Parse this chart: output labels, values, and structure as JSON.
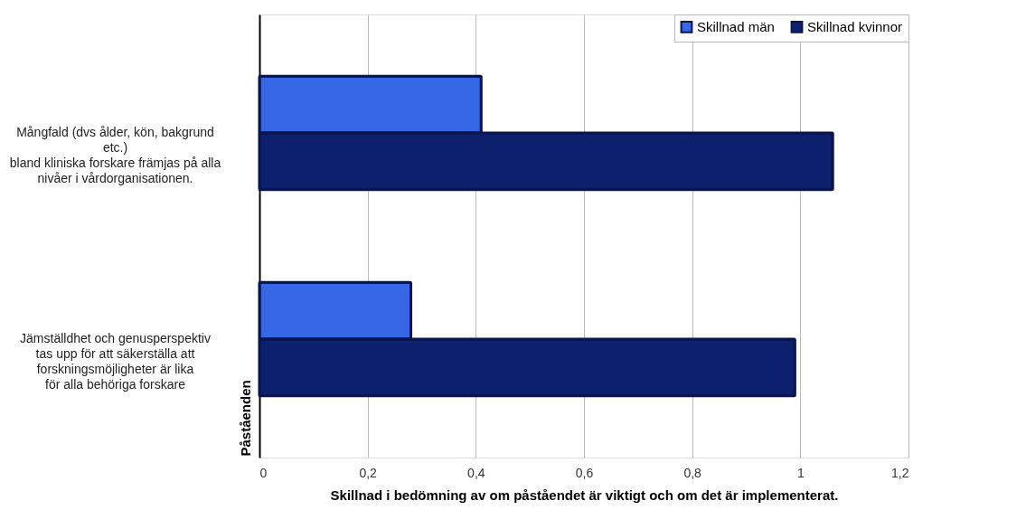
{
  "chart_data": {
    "type": "bar",
    "orientation": "horizontal",
    "xlabel": "Skillnad i bedömning av om påståendet är viktigt och om det är implementerat.",
    "ylabel": "Påståenden",
    "categories": [
      "Mångfald (dvs ålder, kön, bakgrund\netc.)\nbland kliniska forskare främjas på alla\nnivåer i vårdorganisationen.",
      "Jämställdhet och genusperspektiv\ntas upp för att säkerställa att\nforskningsmöjligheter är lika\nför alla behöriga forskare"
    ],
    "series": [
      {
        "name": "Skillnad män",
        "color": "#3567e6",
        "values": [
          0.41,
          0.28
        ]
      },
      {
        "name": "Skillnad kvinnor",
        "color": "#0c206e",
        "values": [
          1.06,
          0.99
        ]
      }
    ],
    "xlim": [
      0,
      1.2
    ],
    "xticks": [
      0,
      {
        "value": 0.2,
        "label": "0,2"
      },
      {
        "value": 0.4,
        "label": "0,4"
      },
      {
        "value": 0.6,
        "label": "0,6"
      },
      {
        "value": 0.8,
        "label": "0,8"
      },
      1,
      {
        "value": 1.2,
        "label": "1,2"
      }
    ],
    "grid": "x",
    "legend": "top right"
  }
}
